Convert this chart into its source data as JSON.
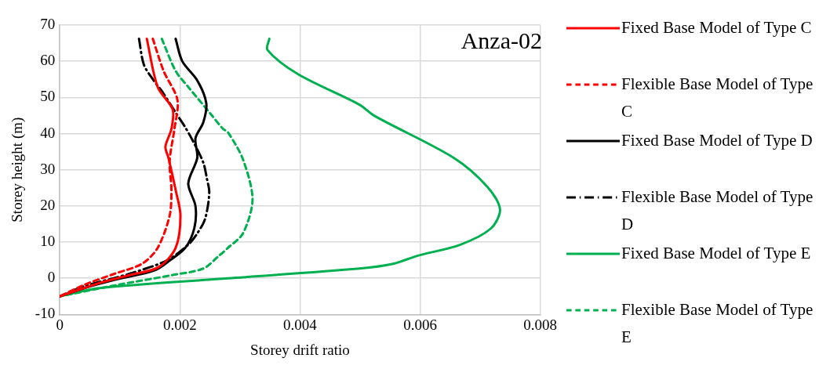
{
  "chart_data": {
    "type": "line",
    "title": "Anza-02",
    "xlabel": "Storey drift ratio",
    "ylabel": "Storey height (m)",
    "xlim": [
      0,
      0.008
    ],
    "xticks": [
      0,
      0.002,
      0.004,
      0.006,
      0.008
    ],
    "ylim": [
      -10,
      70
    ],
    "yticks": [
      -10,
      0,
      10,
      20,
      30,
      40,
      50,
      60,
      70
    ],
    "grid": true,
    "legend": "right",
    "marker": "none",
    "series": [
      {
        "name": "Fixed Base Model of Type C",
        "color": "#ff0000",
        "line_style": "solid",
        "x": [
          0.00145,
          0.00163,
          0.00188,
          0.00186,
          0.00176,
          0.00181,
          0.00193,
          0.00201,
          0.00193,
          0.00165,
          0.00117,
          0.00066,
          0
        ],
        "values": [
          66.2,
          52.9,
          46.7,
          41.3,
          36.4,
          33.3,
          24.4,
          17.3,
          8.4,
          3.1,
          0.9,
          -1.3,
          -5
        ]
      },
      {
        "name": "Flexible Base Model of Type C",
        "color": "#ff0000",
        "line_style": "dashed",
        "x": [
          0.00155,
          0.00173,
          0.00196,
          0.00191,
          0.00183,
          0.00186,
          0.00183,
          0.00163,
          0.00137,
          0.00092,
          0.00041,
          0
        ],
        "values": [
          66.2,
          57.3,
          49.3,
          41.3,
          32.4,
          24.4,
          17.3,
          8.4,
          4,
          1.3,
          -1.8,
          -5
        ]
      },
      {
        "name": "Fixed Base Model of Type D",
        "color": "#000000",
        "line_style": "solid",
        "x": [
          0.00193,
          0.00204,
          0.00229,
          0.00244,
          0.00239,
          0.00226,
          0.00229,
          0.00214,
          0.00226,
          0.00224,
          0.00209,
          0.00183,
          0.00158,
          0.00092,
          0.00041,
          0
        ],
        "values": [
          66.2,
          60,
          54.7,
          48.4,
          43.1,
          38.7,
          33.3,
          26.2,
          20,
          13.8,
          8.4,
          4.9,
          2.2,
          -0.4,
          -2.7,
          -5
        ]
      },
      {
        "name": "Flexible Base Model of Type D",
        "color": "#000000",
        "line_style": "dashdot",
        "x": [
          0.00132,
          0.0014,
          0.00155,
          0.00171,
          0.00193,
          0.00208,
          0.00221,
          0.00239,
          0.00245,
          0.00249,
          0.00242,
          0.00229,
          0.00214,
          0.00178,
          0.00117,
          0.00041,
          0
        ],
        "values": [
          66.2,
          59.1,
          55,
          51.5,
          45.8,
          42,
          38.2,
          32,
          27.6,
          23.6,
          16.4,
          12.4,
          9.3,
          4.9,
          1.3,
          -2.2,
          -5
        ]
      },
      {
        "name": "Fixed Base Model of Type E",
        "color": "#00b050",
        "line_style": "solid",
        "x": [
          0.00349,
          0.00346,
          0.00397,
          0.00499,
          0.00524,
          0.00656,
          0.00712,
          0.00733,
          0.00718,
          0.00667,
          0.00595,
          0.00555,
          0.00499,
          0.0028,
          0.00066,
          0
        ],
        "values": [
          66.2,
          63.1,
          56.4,
          48,
          44.9,
          33.3,
          25.3,
          19.1,
          13.8,
          9.3,
          6.2,
          4,
          2.7,
          0,
          -2.7,
          -5
        ]
      },
      {
        "name": "Flexible Base Model of Type E",
        "color": "#00b050",
        "line_style": "dashed",
        "x": [
          0.0017,
          0.00193,
          0.00214,
          0.00252,
          0.00272,
          0.0028,
          0.00305,
          0.00321,
          0.00305,
          0.0028,
          0.00265,
          0.00239,
          0.00188,
          0.00097,
          0
        ],
        "values": [
          66.2,
          57.3,
          52.9,
          45.3,
          41.3,
          40.4,
          32.9,
          21.8,
          12.4,
          8.4,
          6.2,
          2.7,
          0.9,
          -1.8,
          -5
        ]
      }
    ]
  }
}
